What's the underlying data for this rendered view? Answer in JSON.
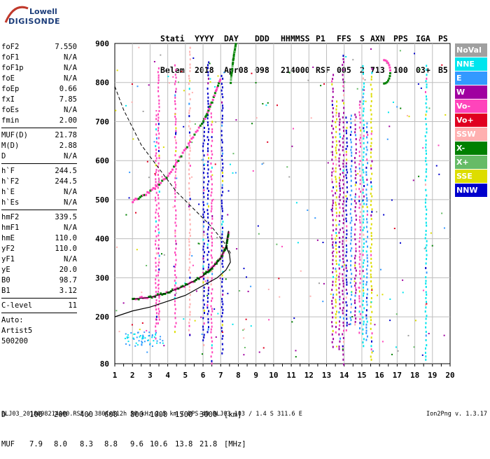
{
  "logo": {
    "top": "Lowell",
    "bottom": "DIGISONDE"
  },
  "header": {
    "row1": [
      "Stati",
      "YYYY",
      "DAY",
      "DDD",
      "HHMMSS",
      "P1",
      "FFS",
      "S",
      "AXN",
      "PPS",
      "IGA",
      "PS"
    ],
    "row2": [
      "Belem",
      "2018",
      "Apr08",
      "098",
      "214000",
      "RSF",
      "005",
      "2",
      "713",
      "100",
      "03+",
      "B5"
    ]
  },
  "params": {
    "group1": [
      {
        "label": "foF2",
        "value": "7.550"
      },
      {
        "label": "foF1",
        "value": "N/A"
      },
      {
        "label": "foF1p",
        "value": "N/A"
      },
      {
        "label": "foE",
        "value": "N/A"
      },
      {
        "label": "foEp",
        "value": "0.66"
      },
      {
        "label": "fxI",
        "value": "7.85"
      },
      {
        "label": "foEs",
        "value": "N/A"
      },
      {
        "label": "fmin",
        "value": "2.00"
      }
    ],
    "group2": [
      {
        "label": "MUF(D)",
        "value": "21.78"
      },
      {
        "label": "M(D)",
        "value": "2.88"
      },
      {
        "label": "D",
        "value": "N/A"
      }
    ],
    "group3": [
      {
        "label": "h`F",
        "value": "244.5"
      },
      {
        "label": "h`F2",
        "value": "244.5"
      },
      {
        "label": "h`E",
        "value": "N/A"
      },
      {
        "label": "h`Es",
        "value": "N/A"
      }
    ],
    "group4": [
      {
        "label": "hmF2",
        "value": "339.5"
      },
      {
        "label": "hmF1",
        "value": "N/A"
      },
      {
        "label": "hmE",
        "value": "110.0"
      },
      {
        "label": "yF2",
        "value": "110.0"
      },
      {
        "label": "yF1",
        "value": "N/A"
      },
      {
        "label": "yE",
        "value": "20.0"
      },
      {
        "label": "B0",
        "value": "98.7"
      },
      {
        "label": "B1",
        "value": "3.12"
      }
    ],
    "group5": [
      {
        "label": "C-level",
        "value": "11"
      }
    ]
  },
  "auto": {
    "line1": "Auto:",
    "line2": "Artist5",
    "line3": "500200"
  },
  "legend": [
    {
      "label": "NoVal",
      "color": "#a0a0a0"
    },
    {
      "label": "NNE",
      "color": "#00e5ee"
    },
    {
      "label": "E",
      "color": "#3399ff"
    },
    {
      "label": "W",
      "color": "#a000a0"
    },
    {
      "label": "Vo-",
      "color": "#ff44bb"
    },
    {
      "label": "Vo+",
      "color": "#e00020"
    },
    {
      "label": "SSW",
      "color": "#ffb0b0"
    },
    {
      "label": "X-",
      "color": "#008000"
    },
    {
      "label": "X+",
      "color": "#66bb66"
    },
    {
      "label": "SSE",
      "color": "#dddd00"
    },
    {
      "label": "NNW",
      "color": "#0000cc"
    }
  ],
  "chart_data": {
    "type": "scatter",
    "xlim": [
      1,
      20
    ],
    "ylim": [
      80,
      900
    ],
    "x_ticks": [
      1,
      2,
      3,
      4,
      5,
      6,
      7,
      8,
      9,
      10,
      11,
      12,
      13,
      14,
      15,
      16,
      17,
      18,
      19,
      20
    ],
    "y_ticks": [
      80,
      200,
      300,
      400,
      500,
      600,
      700,
      800,
      900
    ],
    "grid": true,
    "traces": {
      "o_trace": [
        [
          2.0,
          245
        ],
        [
          3.0,
          250
        ],
        [
          4.0,
          262
        ],
        [
          5.0,
          280
        ],
        [
          6.0,
          305
        ],
        [
          6.5,
          325
        ],
        [
          7.0,
          350
        ],
        [
          7.3,
          380
        ],
        [
          7.45,
          420
        ]
      ],
      "x_trace": [
        [
          7.55,
          800
        ],
        [
          7.7,
          860
        ],
        [
          7.85,
          900
        ]
      ],
      "second_hop": [
        [
          2.0,
          495
        ],
        [
          3.0,
          520
        ],
        [
          4.0,
          560
        ],
        [
          5.0,
          630
        ],
        [
          6.0,
          700
        ],
        [
          6.5,
          750
        ],
        [
          7.0,
          810
        ]
      ],
      "profile": [
        [
          1.0,
          200
        ],
        [
          2.0,
          215
        ],
        [
          3.0,
          225
        ],
        [
          4.0,
          240
        ],
        [
          5.0,
          255
        ],
        [
          6.0,
          280
        ],
        [
          6.8,
          300
        ],
        [
          7.3,
          320
        ],
        [
          7.55,
          340
        ],
        [
          7.5,
          360
        ],
        [
          7.3,
          380
        ]
      ],
      "muf_curve": [
        [
          1.0,
          790
        ],
        [
          1.5,
          730
        ],
        [
          2.5,
          640
        ],
        [
          3.5,
          580
        ],
        [
          4.5,
          520
        ],
        [
          5.5,
          475
        ],
        [
          6.5,
          430
        ],
        [
          7.2,
          390
        ],
        [
          7.6,
          360
        ]
      ]
    }
  },
  "dm": {
    "d_label": "D",
    "d_values": [
      "100",
      "200",
      "400",
      "600",
      "800",
      "1000",
      "1500",
      "3000",
      "[km]"
    ],
    "muf_label": "MUF",
    "muf_values": [
      "7.9",
      "8.0",
      "8.3",
      "8.8",
      "9.6",
      "10.6",
      "13.8",
      "21.8",
      "[MHz]"
    ]
  },
  "footer": {
    "left": "BLJ03_2018098214000.RSF / 380fx512h 50 kHz 2.5 km / DPS-4D BLJ03 103 / 1.4 S 311.6 E",
    "right": "Ion2Png v. 1.3.17"
  }
}
